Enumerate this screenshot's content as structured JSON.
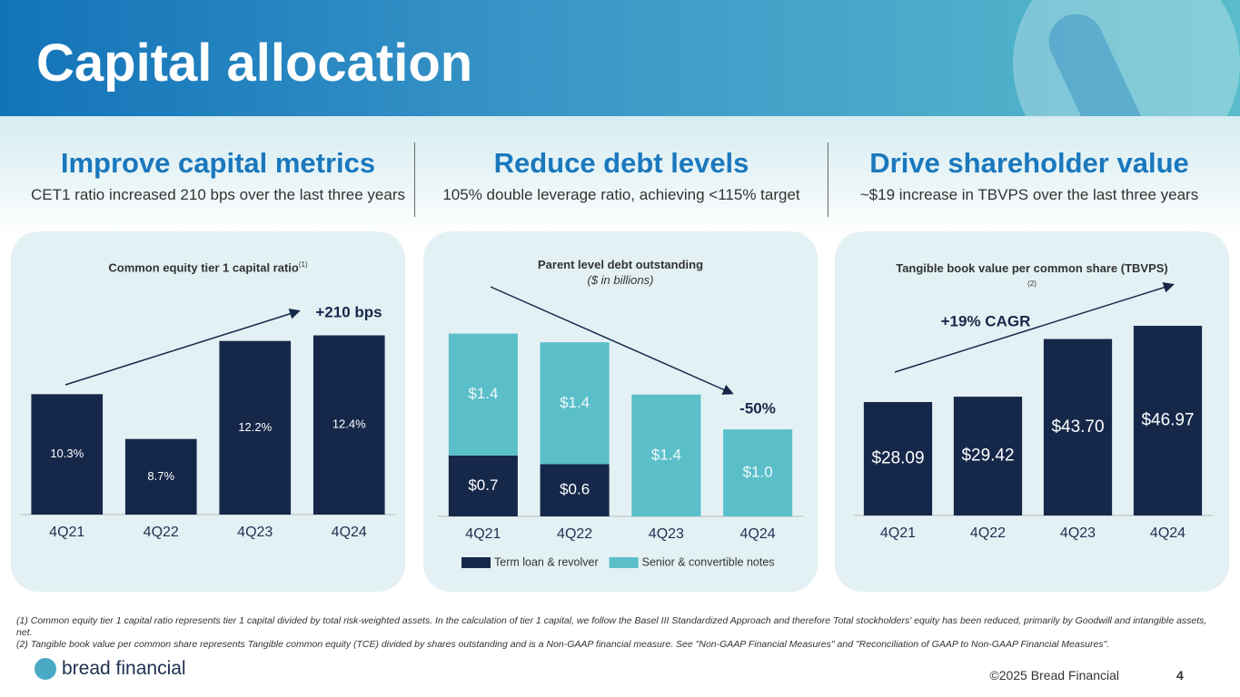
{
  "header": {
    "title": "Capital allocation"
  },
  "pillars": [
    {
      "heading": "Improve capital metrics",
      "text": "CET1 ratio increased 210 bps over the last three years"
    },
    {
      "heading": "Reduce debt levels",
      "text": "105% double leverage ratio, achieving <115% target"
    },
    {
      "heading": "Drive shareholder value",
      "text": "~$19 increase in TBVPS over the last three years"
    }
  ],
  "chart_data": [
    {
      "type": "bar",
      "title": "Common equity tier 1 capital ratio",
      "title_note": "(1)",
      "categories": [
        "4Q21",
        "4Q22",
        "4Q23",
        "4Q24"
      ],
      "values": [
        10.3,
        8.7,
        12.2,
        12.4
      ],
      "value_labels": [
        "10.3%",
        "8.7%",
        "12.2%",
        "12.4%"
      ],
      "color": "#16284a",
      "ylim": [
        6,
        13
      ],
      "annotation": "+210 bps"
    },
    {
      "type": "stacked-bar",
      "title": "Parent level debt outstanding",
      "subtitle": "($ in billions)",
      "categories": [
        "4Q21",
        "4Q22",
        "4Q23",
        "4Q24"
      ],
      "series": [
        {
          "name": "Term loan & revolver",
          "color": "#16284a",
          "values": [
            0.7,
            0.6,
            null,
            null
          ],
          "value_labels": [
            "$0.7",
            "$0.6",
            null,
            null
          ]
        },
        {
          "name": "Senior & convertible notes",
          "color": "#5bbfca",
          "values": [
            1.4,
            1.4,
            1.4,
            1.0
          ],
          "value_labels": [
            "$1.4",
            "$1.4",
            "$1.4",
            "$1.0"
          ]
        }
      ],
      "ylim": [
        0,
        2.2
      ],
      "annotation": "-50%"
    },
    {
      "type": "bar",
      "title": "Tangible book value per common share (TBVPS)",
      "title_note": "(2)",
      "categories": [
        "4Q21",
        "4Q22",
        "4Q23",
        "4Q24"
      ],
      "values": [
        28.09,
        29.42,
        43.7,
        46.97
      ],
      "value_labels": [
        "$28.09",
        "$29.42",
        "$43.70",
        "$46.97"
      ],
      "color": "#16284a",
      "ylim": [
        0,
        50
      ],
      "annotation": "+19% CAGR"
    }
  ],
  "footnotes": [
    "(1) Common equity tier 1 capital ratio represents tier 1 capital divided by total risk-weighted assets. In the calculation of tier 1 capital, we follow the Basel III Standardized Approach and therefore Total stockholders' equity has been reduced, primarily by Goodwill and intangible assets, net.",
    "(2) Tangible book value per common share represents Tangible common equity (TCE) divided by shares outstanding and is a Non-GAAP financial measure. See \"Non-GAAP Financial Measures\" and \"Reconciliation of GAAP to Non-GAAP Financial Measures\"."
  ],
  "footer": {
    "logo": "bread financial",
    "copyright": "©2025 Bread Financial",
    "page": "4"
  }
}
